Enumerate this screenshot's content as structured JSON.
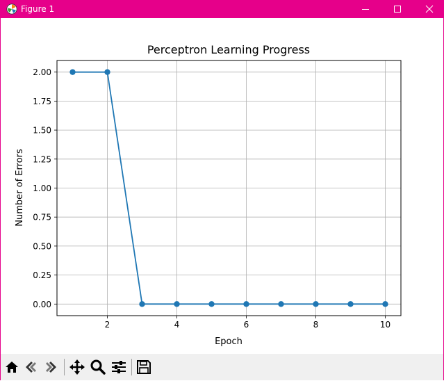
{
  "window": {
    "title": "Figure 1"
  },
  "toolbar": {
    "buttons": [
      "home-icon",
      "back-icon",
      "forward-icon",
      "pan-icon",
      "zoom-icon",
      "configure-subplots-icon",
      "save-icon"
    ]
  },
  "colors": {
    "titlebar": "#e6008a",
    "series": "#1f77b4",
    "grid": "#b0b0b0"
  },
  "chart_data": {
    "type": "line",
    "title": "Perceptron Learning Progress",
    "xlabel": "Epoch",
    "ylabel": "Number of Errors",
    "x": [
      1,
      2,
      3,
      4,
      5,
      6,
      7,
      8,
      9,
      10
    ],
    "series": [
      {
        "values": [
          2,
          2,
          0,
          0,
          0,
          0,
          0,
          0,
          0,
          0
        ],
        "marker": "circle"
      }
    ],
    "xlim": [
      0.55,
      10.45
    ],
    "ylim": [
      -0.1,
      2.1
    ],
    "xticks": [
      "2",
      "4",
      "6",
      "8",
      "10"
    ],
    "yticks": [
      "0.00",
      "0.25",
      "0.50",
      "0.75",
      "1.00",
      "1.25",
      "1.50",
      "1.75",
      "2.00"
    ],
    "grid": true
  }
}
